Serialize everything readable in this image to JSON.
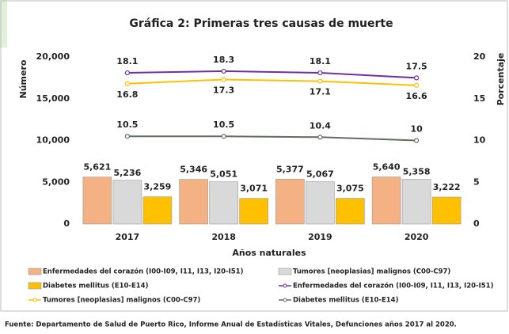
{
  "chart_data": {
    "type": "bar",
    "title": "Gráfica 2: Primeras tres causas de muerte",
    "y_label": "Número",
    "y2_label": "Porcentaje",
    "x_label": "Años naturales",
    "source": "Fuente:  Departamento de Salud de Puerto Rico, Informe Anual de Estadísticas Vitales, Defunciones años 2017 al 2020.",
    "categories": [
      "2017",
      "2018",
      "2019",
      "2020"
    ],
    "ylim": [
      0,
      20000
    ],
    "yticks": [
      0,
      {
        "value": 5000,
        "label": "5,000"
      },
      {
        "value": 10000,
        "label": "10,000"
      },
      {
        "value": 15000,
        "label": "15,000"
      },
      {
        "value": 20000,
        "label": "20,000"
      }
    ],
    "y2lim": [
      0,
      20
    ],
    "y2ticks": [
      0,
      5,
      10,
      15,
      20
    ],
    "series": [
      {
        "name": "Enfermedades del corazón (I00-I09, I11, I13, I20-I51)",
        "type": "bar",
        "color": "#f4b183",
        "values": [
          5621,
          5346,
          5377,
          5640
        ],
        "value_labels": [
          "5,621",
          "5,346",
          "5,377",
          "5,640"
        ]
      },
      {
        "name": "Tumores [neoplasias] malignos (C00-C97)",
        "type": "bar",
        "color": "#d9d9d9",
        "values": [
          5236,
          5051,
          5067,
          5358
        ],
        "value_labels": [
          "5,236",
          "5,051",
          "5,067",
          "5,358"
        ]
      },
      {
        "name": "Diabetes mellitus (E10-E14)",
        "type": "bar",
        "color": "#ffc000",
        "values": [
          3259,
          3071,
          3075,
          3222
        ],
        "value_labels": [
          "3,259",
          "3,071",
          "3,075",
          "3,222"
        ]
      },
      {
        "name": "Enfermedades del corazón (I00-I09, I11, I13, I20-I51)",
        "type": "line",
        "axis": "y2",
        "color": "#7030a0",
        "values": [
          18.1,
          18.3,
          18.1,
          17.5
        ]
      },
      {
        "name": "Tumores [neoplasias] malignos (C00-C97)",
        "type": "line",
        "axis": "y2",
        "color": "#ffc000",
        "values": [
          16.8,
          17.3,
          17.1,
          16.6
        ]
      },
      {
        "name": "Diabetes mellitus (E10-E14)",
        "type": "line",
        "axis": "y2",
        "color": "#5f6f5f",
        "values": [
          10.5,
          10.5,
          10.4,
          10
        ]
      }
    ]
  }
}
